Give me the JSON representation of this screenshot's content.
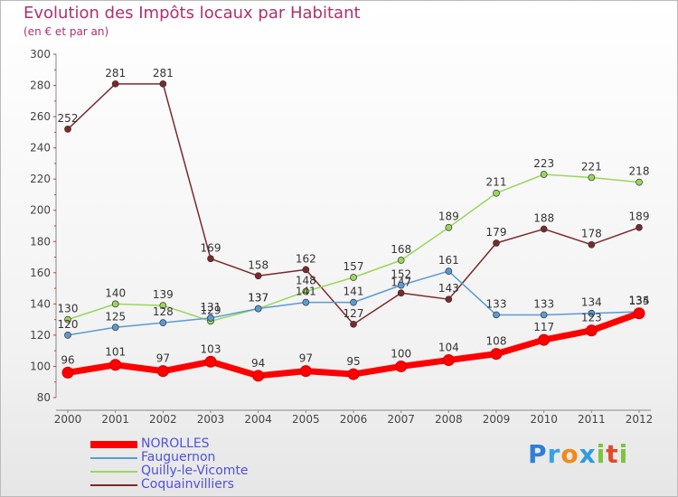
{
  "header": {
    "title": "Evolution des Impôts locaux par Habitant",
    "subtitle": "(en € et par an)"
  },
  "brand": {
    "logo_text": "Proxiti"
  },
  "chart_data": {
    "type": "line",
    "x": [
      2000,
      2001,
      2002,
      2003,
      2004,
      2005,
      2006,
      2007,
      2008,
      2009,
      2010,
      2011,
      2012
    ],
    "ylim": [
      80,
      300
    ],
    "yticks": [
      80,
      100,
      120,
      140,
      160,
      180,
      200,
      220,
      240,
      260,
      280,
      300
    ],
    "grid": false,
    "legend_position": "bottom-left",
    "series": [
      {
        "name": "Coquainvilliers",
        "color": "#7b2a2a",
        "values": [
          252,
          281,
          281,
          169,
          158,
          162,
          127,
          147,
          143,
          179,
          188,
          178,
          189
        ]
      },
      {
        "name": "Quilly-le-Vicomte",
        "color": "#9ad65a",
        "values": [
          130,
          140,
          139,
          129,
          137,
          148,
          157,
          168,
          189,
          211,
          223,
          221,
          218
        ]
      },
      {
        "name": "Fauguernon",
        "color": "#5a9bd4",
        "values": [
          120,
          125,
          128,
          131,
          137,
          141,
          141,
          152,
          161,
          133,
          133,
          134,
          135
        ]
      },
      {
        "name": "NOROLLES",
        "color": "#ff0000",
        "values": [
          96,
          101,
          97,
          103,
          94,
          97,
          95,
          100,
          104,
          108,
          117,
          123,
          134
        ]
      }
    ],
    "legend": [
      "NOROLLES",
      "Fauguernon",
      "Quilly-le-Vicomte",
      "Coquainvilliers"
    ]
  }
}
